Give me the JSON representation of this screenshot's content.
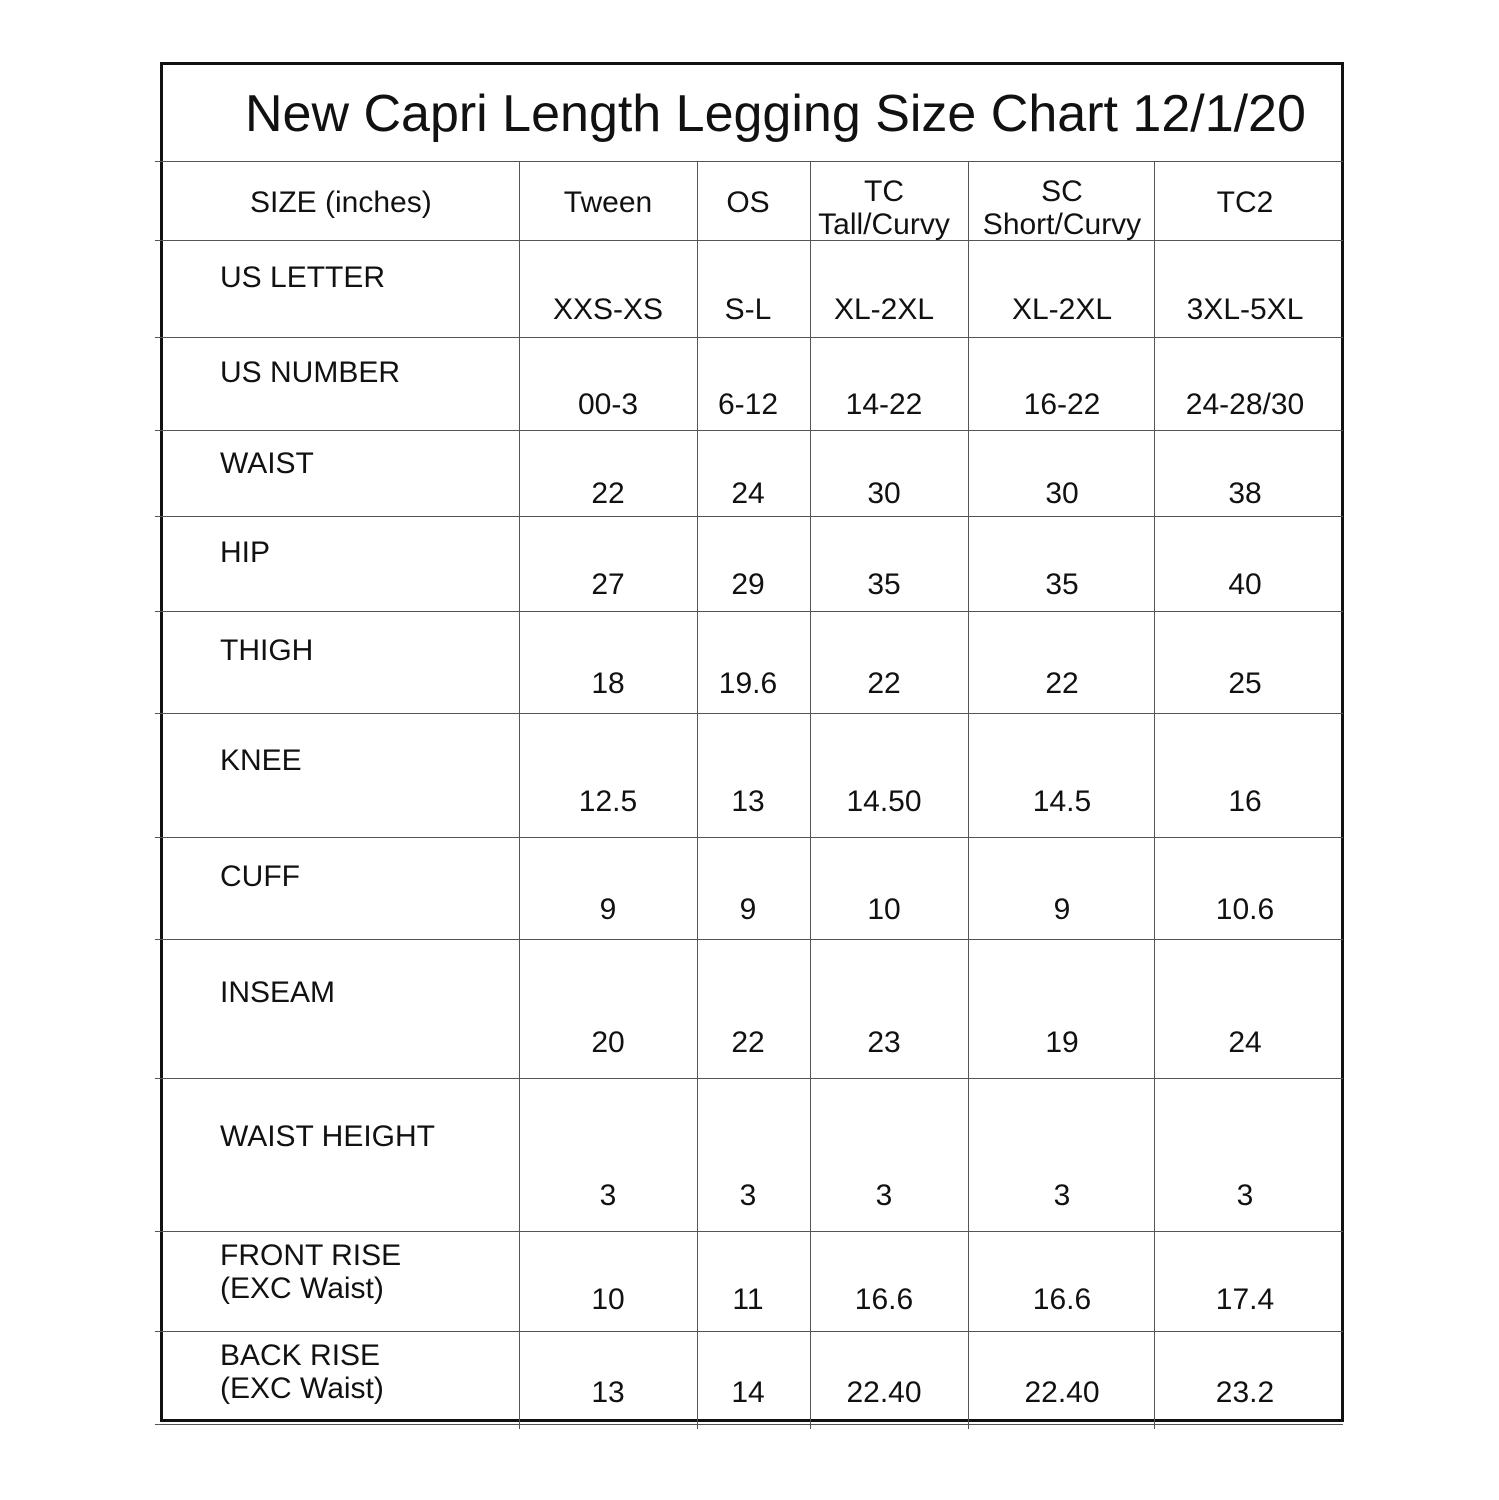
{
  "title": "New Capri Length Legging Size Chart 12/1/20",
  "header": {
    "label": "SIZE (inches)",
    "columns": [
      "Tween",
      "OS",
      "TC\nTall/Curvy",
      "SC\nShort/Curvy",
      "TC2"
    ]
  },
  "rows": [
    {
      "label": "US LETTER",
      "values": [
        "XXS-XS",
        "S-L",
        "XL-2XL",
        "XL-2XL",
        "3XL-5XL"
      ]
    },
    {
      "label": "US NUMBER",
      "values": [
        "00-3",
        "6-12",
        "14-22",
        "16-22",
        "24-28/30"
      ]
    },
    {
      "label": "WAIST",
      "values": [
        "22",
        "24",
        "30",
        "30",
        "38"
      ]
    },
    {
      "label": "HIP",
      "values": [
        "27",
        "29",
        "35",
        "35",
        "40"
      ]
    },
    {
      "label": "THIGH",
      "values": [
        "18",
        "19.6",
        "22",
        "22",
        "25"
      ]
    },
    {
      "label": "KNEE",
      "values": [
        "12.5",
        "13",
        "14.50",
        "14.5",
        "16"
      ]
    },
    {
      "label": "CUFF",
      "values": [
        "9",
        "9",
        "10",
        "9",
        "10.6"
      ]
    },
    {
      "label": "INSEAM",
      "values": [
        "20",
        "22",
        "23",
        "19",
        "24"
      ]
    },
    {
      "label": "WAIST HEIGHT",
      "values": [
        "3",
        "3",
        "3",
        "3",
        "3"
      ]
    },
    {
      "label": "FRONT RISE\n(EXC Waist)",
      "values": [
        "10",
        "11",
        "16.6",
        "16.6",
        "17.4"
      ]
    },
    {
      "label": "BACK RISE\n(EXC Waist)",
      "values": [
        "13",
        "14",
        "22.40",
        "22.40",
        "23.2"
      ]
    }
  ]
}
